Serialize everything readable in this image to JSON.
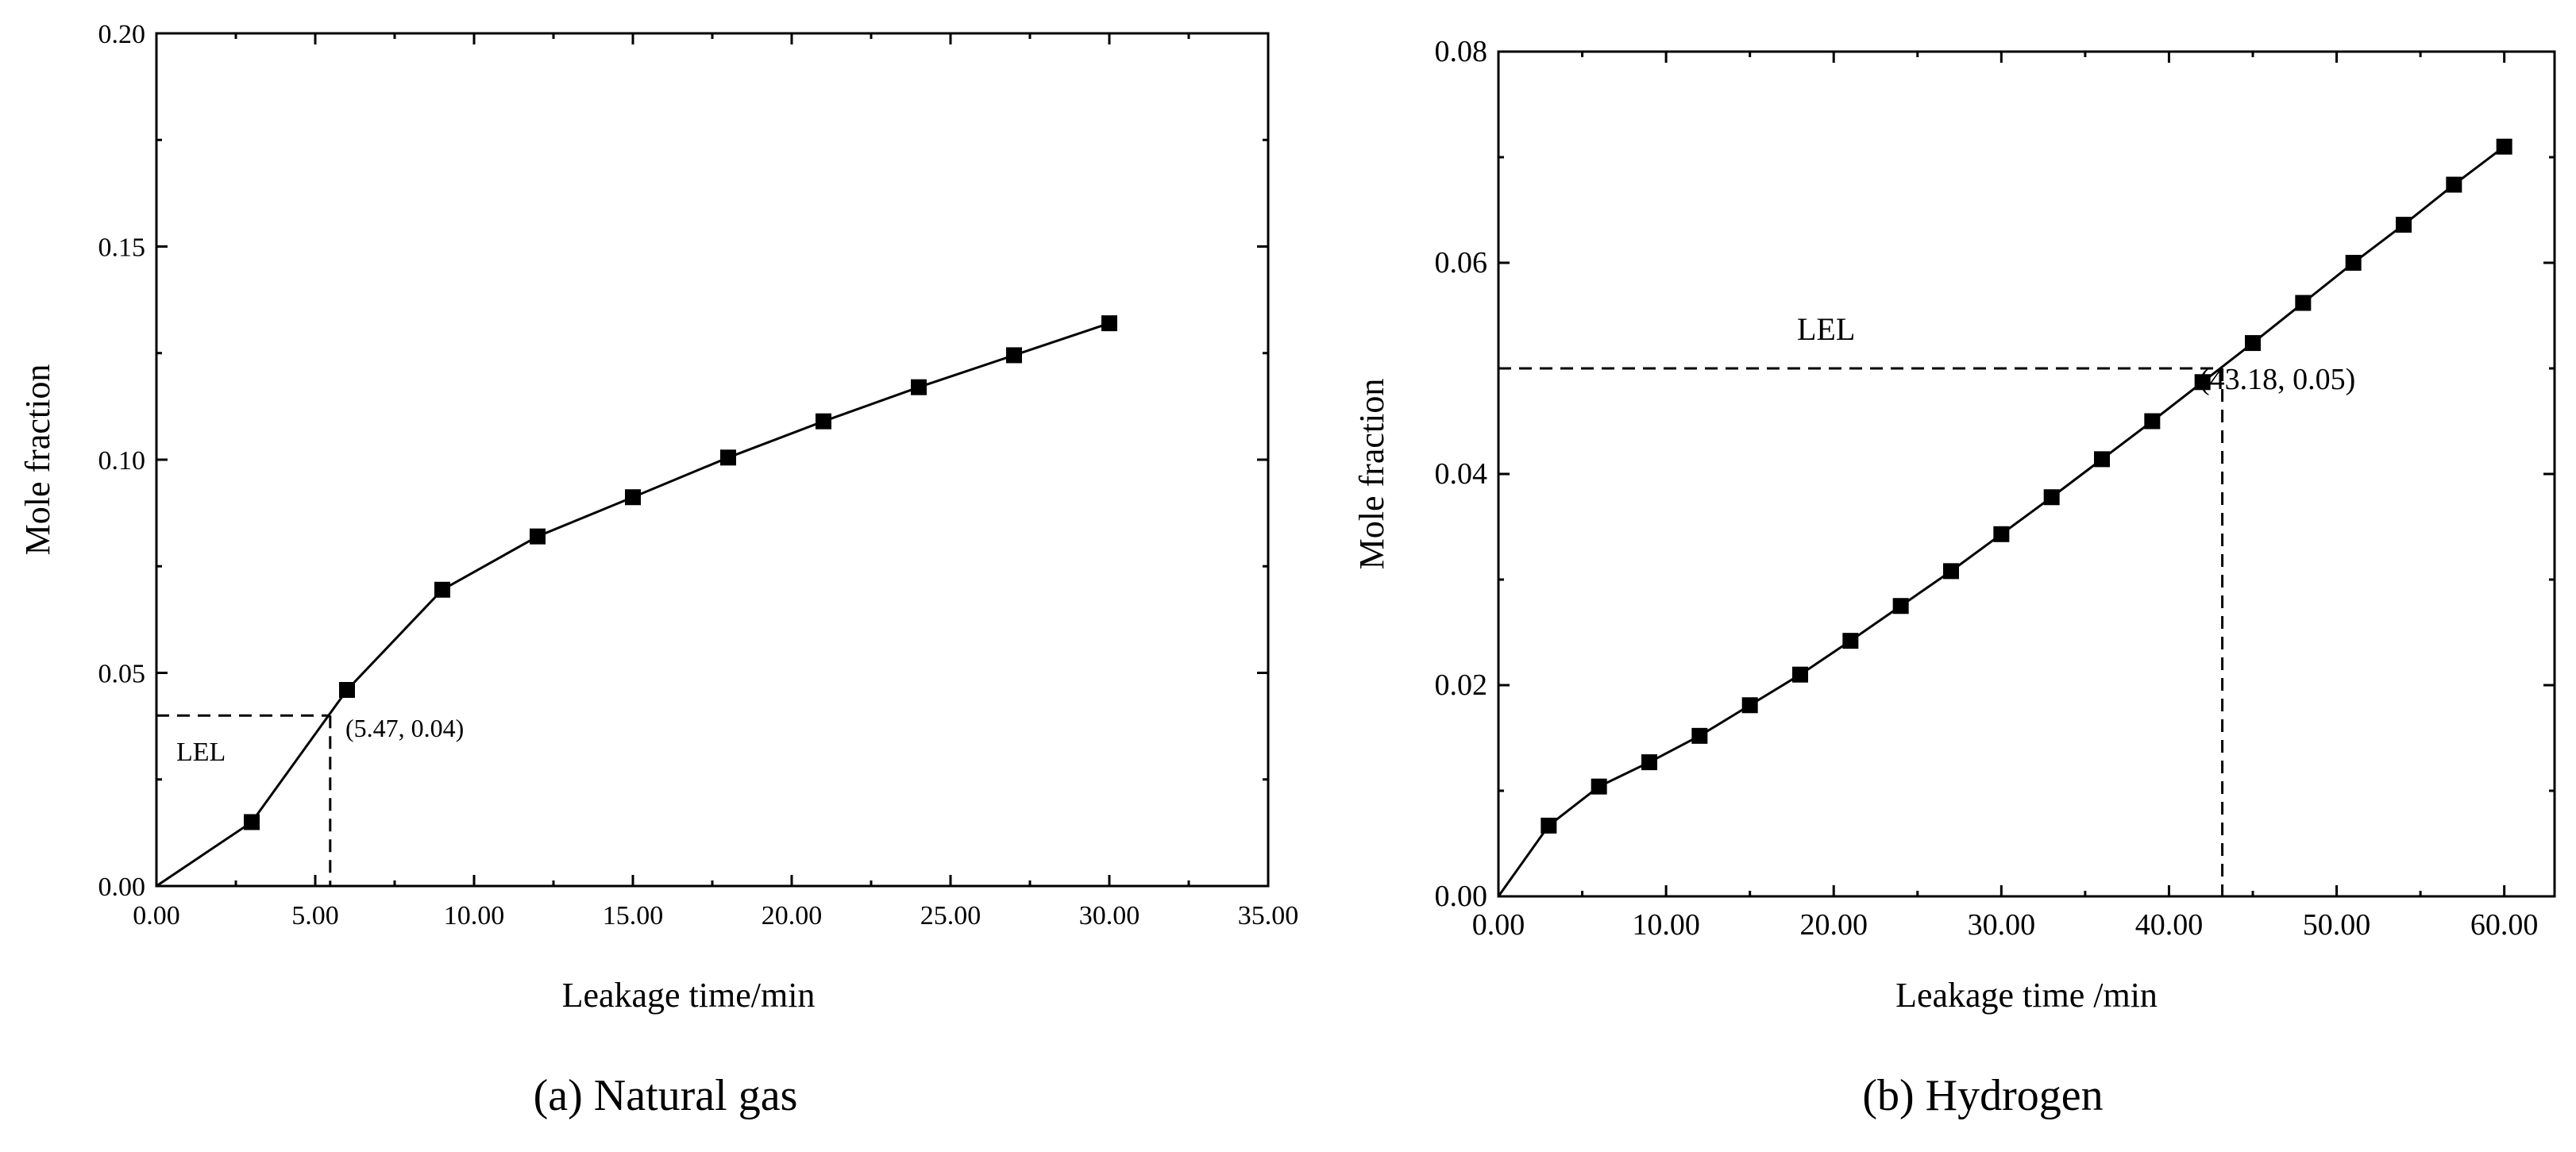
{
  "chart_data": [
    {
      "type": "line",
      "panel": "a",
      "caption": "(a) Natural gas",
      "xlabel": "Leakage time/min",
      "ylabel": "Mole fraction",
      "xlim": [
        0,
        35
      ],
      "ylim": [
        0,
        0.2
      ],
      "xticks": [
        "0.00",
        "5.00",
        "10.00",
        "15.00",
        "20.00",
        "25.00",
        "30.00",
        "35.00"
      ],
      "yticks": [
        "0.00",
        "0.05",
        "0.10",
        "0.15",
        "0.20"
      ],
      "series": [
        {
          "name": "Natural gas",
          "x": [
            0,
            3,
            6,
            9,
            12,
            15,
            18,
            21,
            24,
            27,
            30
          ],
          "y": [
            0,
            0.015,
            0.046,
            0.0695,
            0.082,
            0.0912,
            0.1005,
            0.109,
            0.117,
            0.1245,
            0.132
          ],
          "marker_from_index": 1
        }
      ],
      "lel": {
        "label": "LEL",
        "x": 5.47,
        "y": 0.04,
        "annotation": "(5.47, 0.04)"
      }
    },
    {
      "type": "line",
      "panel": "b",
      "caption": "(b) Hydrogen",
      "xlabel": "Leakage time /min",
      "ylabel": "Mole fraction",
      "xlim": [
        0,
        63
      ],
      "ylim": [
        0,
        0.08
      ],
      "xticks": [
        "0.00",
        "10.00",
        "20.00",
        "30.00",
        "40.00",
        "50.00",
        "60.00"
      ],
      "yticks": [
        "0.00",
        "0.02",
        "0.04",
        "0.06",
        "0.08"
      ],
      "series": [
        {
          "name": "Hydrogen",
          "x": [
            0,
            3,
            6,
            9,
            12,
            15,
            18,
            21,
            24,
            27,
            30,
            33,
            36,
            39,
            42,
            45,
            48,
            51,
            54,
            57,
            60
          ],
          "y": [
            0,
            0.0067,
            0.0104,
            0.0127,
            0.0152,
            0.0181,
            0.021,
            0.0242,
            0.0275,
            0.0308,
            0.0343,
            0.0378,
            0.0414,
            0.045,
            0.0487,
            0.0524,
            0.0562,
            0.06,
            0.0636,
            0.0674,
            0.071
          ],
          "marker_from_index": 1
        }
      ],
      "lel": {
        "label": "LEL",
        "x": 43.18,
        "y": 0.05,
        "annotation": "(43.18, 0.05)"
      }
    }
  ]
}
